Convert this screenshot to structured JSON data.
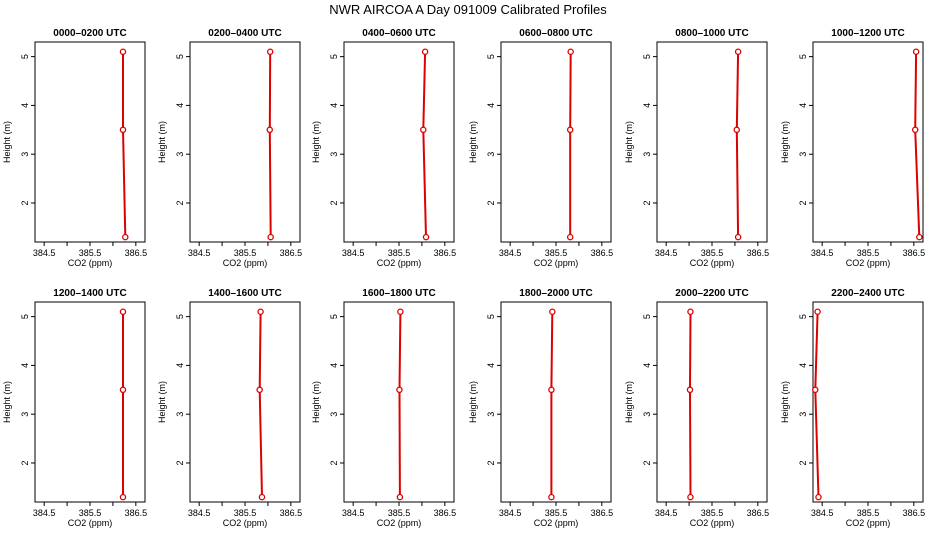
{
  "title": "NWR AIRCOA A  Day 091009  Calibrated Profiles",
  "chart_data": {
    "type": "line",
    "series_color": "#dd0000",
    "xlabel": "CO2 (ppm)",
    "ylabel": "Height (m)",
    "xlim": [
      384.3,
      386.7
    ],
    "ylim": [
      1.2,
      5.3
    ],
    "xticks": [
      384.5,
      385.0,
      385.5,
      386.0,
      386.5
    ],
    "xtick_labels": [
      "384.5",
      "",
      "385.5",
      "",
      "386.5"
    ],
    "yticks": [
      2,
      3,
      4,
      5
    ],
    "yticklabels": [
      "2",
      "3",
      "4",
      "5"
    ],
    "heights": [
      5.1,
      3.5,
      1.3
    ],
    "panels": [
      {
        "title": "0000–0200 UTC",
        "co2": [
          386.22,
          386.22,
          386.27
        ]
      },
      {
        "title": "0200–0400 UTC",
        "co2": [
          386.05,
          386.04,
          386.06
        ]
      },
      {
        "title": "0400–0600 UTC",
        "co2": [
          386.07,
          386.03,
          386.09
        ]
      },
      {
        "title": "0600–0800 UTC",
        "co2": [
          385.82,
          385.81,
          385.81
        ]
      },
      {
        "title": "0800–1000 UTC",
        "co2": [
          386.07,
          386.04,
          386.07
        ]
      },
      {
        "title": "1000–1200 UTC",
        "co2": [
          386.55,
          386.53,
          386.62
        ]
      },
      {
        "title": "1200–1400 UTC",
        "co2": [
          386.22,
          386.22,
          386.22
        ]
      },
      {
        "title": "1400–1600 UTC",
        "co2": [
          385.84,
          385.82,
          385.87
        ]
      },
      {
        "title": "1600–1800 UTC",
        "co2": [
          385.53,
          385.51,
          385.52
        ]
      },
      {
        "title": "1800–2000 UTC",
        "co2": [
          385.42,
          385.4,
          385.4
        ]
      },
      {
        "title": "2000–2200 UTC",
        "co2": [
          385.03,
          385.02,
          385.03
        ]
      },
      {
        "title": "2200–2400 UTC",
        "co2": [
          384.4,
          384.35,
          384.42
        ]
      }
    ]
  }
}
